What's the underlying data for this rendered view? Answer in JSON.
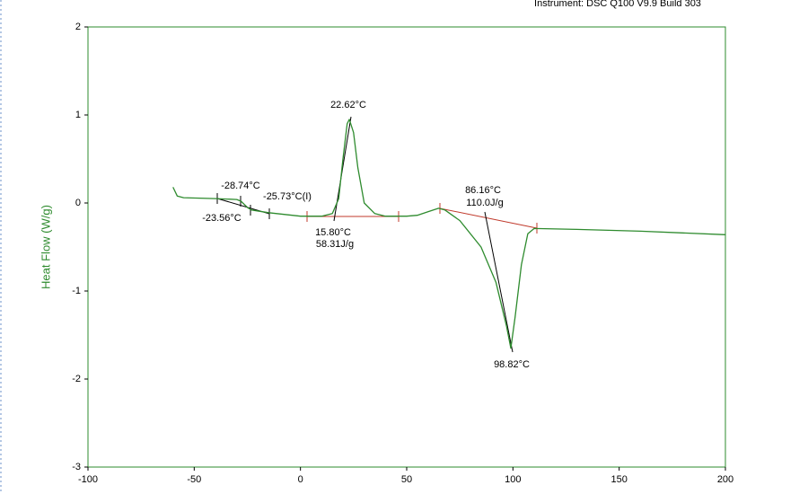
{
  "chart_data": {
    "type": "line",
    "title": "Instrument: DSC Q100 V9.9 Build 303",
    "y_label": "Heat Flow (W/g)",
    "x": [
      -60,
      -58,
      -55,
      -40,
      -30,
      -28,
      -25,
      -23,
      -15,
      0,
      10,
      15,
      18,
      20,
      22,
      23,
      25,
      27,
      30,
      35,
      40,
      50,
      55,
      60,
      65,
      68,
      75,
      85,
      92,
      97,
      99,
      101,
      104,
      107,
      110,
      130,
      160,
      200
    ],
    "series": [
      {
        "name": "Heat Flow (W/g)",
        "color": "#2e8b2e",
        "values": [
          0.18,
          0.08,
          0.06,
          0.05,
          0.04,
          0.02,
          -0.05,
          -0.08,
          -0.11,
          -0.15,
          -0.15,
          -0.12,
          0.05,
          0.5,
          0.9,
          0.95,
          0.8,
          0.4,
          0.0,
          -0.12,
          -0.15,
          -0.15,
          -0.14,
          -0.1,
          -0.06,
          -0.08,
          -0.2,
          -0.5,
          -0.9,
          -1.4,
          -1.65,
          -1.3,
          -0.7,
          -0.35,
          -0.29,
          -0.3,
          -0.32,
          -0.36
        ]
      }
    ],
    "annotations": [
      "22.62°C",
      "-28.74°C",
      "-25.73°C(I)",
      "-23.56°C",
      "15.80°C",
      "58.31J/g",
      "86.16°C",
      "110.0J/g",
      "98.82°C"
    ],
    "xlim": [
      -100,
      200
    ],
    "xticks": [
      -100,
      -50,
      0,
      50,
      100,
      150,
      200
    ],
    "ylim": [
      -3,
      2
    ],
    "yticks": [
      -3,
      -2,
      -1,
      0,
      1,
      2
    ],
    "grid": false
  }
}
